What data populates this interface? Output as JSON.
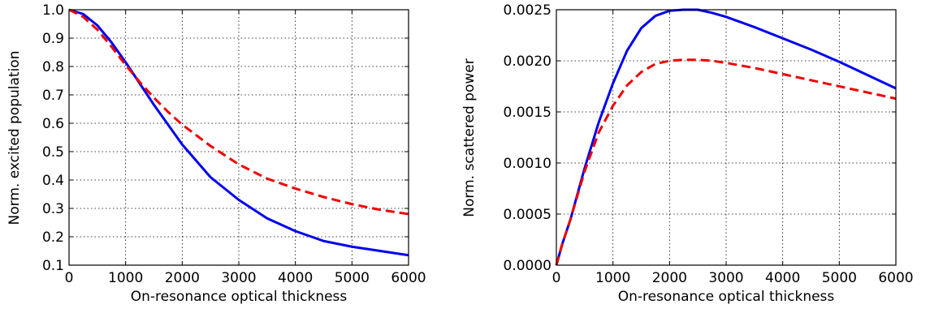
{
  "chart_data": [
    {
      "type": "line",
      "xlabel": "On-resonance optical thickness",
      "ylabel": "Norm. excited population",
      "xlim": [
        0,
        6000
      ],
      "ylim": [
        0.1,
        1.0
      ],
      "grid": true,
      "xticks": [
        0,
        1000,
        2000,
        3000,
        4000,
        5000,
        6000
      ],
      "xtick_labels": [
        "0",
        "1000",
        "2000",
        "3000",
        "4000",
        "5000",
        "6000"
      ],
      "yticks": [
        0.1,
        0.2,
        0.3,
        0.4,
        0.5,
        0.6,
        0.7,
        0.8,
        0.9,
        1.0
      ],
      "ytick_labels": [
        "0.1",
        "0.2",
        "0.3",
        "0.4",
        "0.5",
        "0.6",
        "0.7",
        "0.8",
        "0.9",
        "1.0"
      ],
      "series": [
        {
          "color": "#0000ee",
          "style": "solid",
          "x": [
            0,
            250,
            500,
            750,
            1000,
            1250,
            1500,
            1750,
            2000,
            2500,
            3000,
            3500,
            4000,
            4500,
            5000,
            5500,
            6000
          ],
          "y": [
            1.0,
            0.985,
            0.945,
            0.885,
            0.815,
            0.74,
            0.665,
            0.595,
            0.525,
            0.41,
            0.33,
            0.265,
            0.22,
            0.185,
            0.165,
            0.15,
            0.135
          ]
        },
        {
          "color": "#ee0000",
          "style": "dashed",
          "x": [
            0,
            250,
            500,
            750,
            1000,
            1250,
            1500,
            1750,
            2000,
            2500,
            3000,
            3500,
            4000,
            4500,
            5000,
            5500,
            6000
          ],
          "y": [
            1.0,
            0.975,
            0.93,
            0.87,
            0.805,
            0.745,
            0.69,
            0.64,
            0.595,
            0.52,
            0.455,
            0.405,
            0.37,
            0.34,
            0.315,
            0.295,
            0.28
          ]
        }
      ]
    },
    {
      "type": "line",
      "xlabel": "On-resonance optical thickness",
      "ylabel": "Norm. scattered power",
      "xlim": [
        0,
        6000
      ],
      "ylim": [
        0.0,
        0.0025
      ],
      "grid": true,
      "xticks": [
        0,
        1000,
        2000,
        3000,
        4000,
        5000,
        6000
      ],
      "xtick_labels": [
        "0",
        "1000",
        "2000",
        "3000",
        "4000",
        "5000",
        "6000"
      ],
      "yticks": [
        0.0,
        0.0005,
        0.001,
        0.0015,
        0.002,
        0.0025
      ],
      "ytick_labels": [
        "0.0000",
        "0.0005",
        "0.0010",
        "0.0015",
        "0.0020",
        "0.0025"
      ],
      "series": [
        {
          "color": "#0000ee",
          "style": "solid",
          "x": [
            0,
            100,
            250,
            500,
            750,
            1000,
            1250,
            1500,
            1750,
            2000,
            2250,
            2500,
            2750,
            3000,
            3500,
            4000,
            4500,
            5000,
            5500,
            6000
          ],
          "y": [
            0.0,
            0.0002,
            0.00045,
            0.00095,
            0.0014,
            0.00178,
            0.0021,
            0.00232,
            0.00244,
            0.00249,
            0.0025,
            0.0025,
            0.00247,
            0.00243,
            0.00233,
            0.00222,
            0.00211,
            0.00199,
            0.00186,
            0.00173
          ]
        },
        {
          "color": "#ee0000",
          "style": "dashed",
          "x": [
            0,
            100,
            250,
            500,
            750,
            1000,
            1250,
            1500,
            1750,
            2000,
            2250,
            2500,
            2750,
            3000,
            3500,
            4000,
            4500,
            5000,
            5500,
            6000
          ],
          "y": [
            0.0,
            0.0002,
            0.00045,
            0.00092,
            0.0013,
            0.00156,
            0.00176,
            0.00189,
            0.00197,
            0.002,
            0.00201,
            0.00201,
            0.002,
            0.00198,
            0.00193,
            0.00187,
            0.00181,
            0.00175,
            0.00169,
            0.00163
          ]
        }
      ]
    }
  ]
}
